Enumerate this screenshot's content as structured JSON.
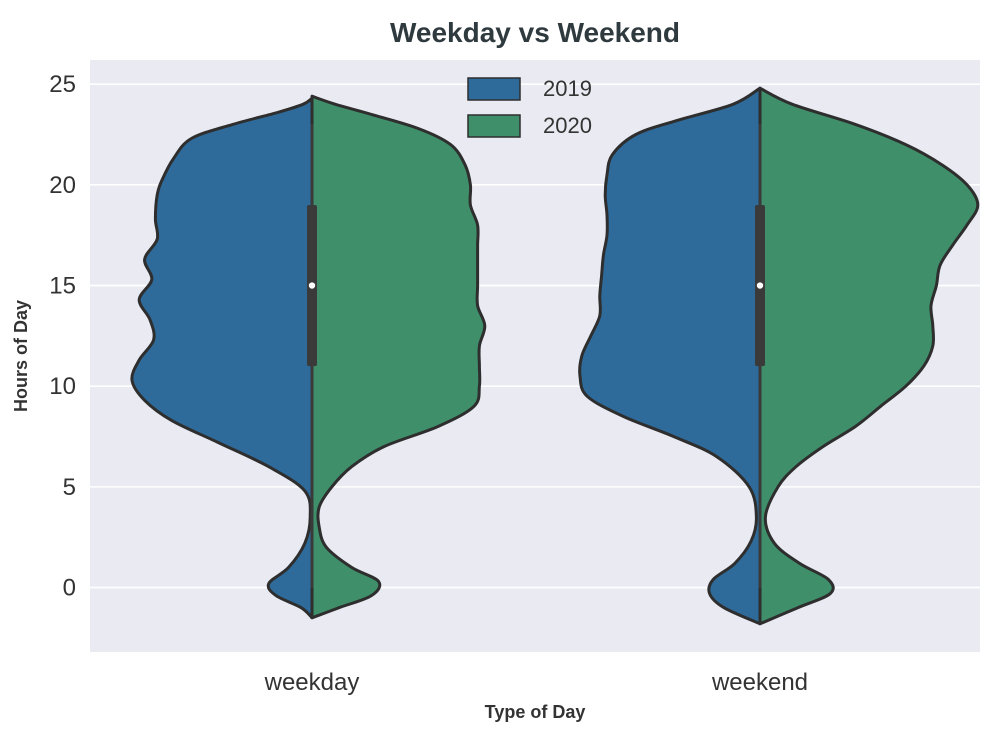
{
  "chart_data": {
    "type": "violin",
    "title": "Weekday vs Weekend",
    "xlabel": "Type of Day",
    "ylabel": "Hours of Day",
    "ylim": [
      -3.2,
      26.2
    ],
    "yticks": [
      0,
      5,
      10,
      15,
      20,
      25
    ],
    "categories": [
      "weekday",
      "weekend"
    ],
    "split": true,
    "grid": true,
    "legend_position": "top-center",
    "series": [
      {
        "name": "2019",
        "color": "#2f6b9a"
      },
      {
        "name": "2020",
        "color": "#3f8f6b"
      }
    ],
    "violins": [
      {
        "category": "weekday",
        "left": {
          "series": "2019",
          "profile": [
            [
              -1.5,
              0.0
            ],
            [
              -1.0,
              0.06
            ],
            [
              -0.4,
              0.2
            ],
            [
              0.2,
              0.24
            ],
            [
              1.0,
              0.13
            ],
            [
              2.2,
              0.04
            ],
            [
              3.5,
              0.01
            ],
            [
              4.8,
              0.04
            ],
            [
              6.0,
              0.24
            ],
            [
              7.2,
              0.52
            ],
            [
              8.3,
              0.78
            ],
            [
              9.3,
              0.93
            ],
            [
              10.3,
              1.0
            ],
            [
              11.3,
              0.96
            ],
            [
              12.3,
              0.88
            ],
            [
              13.3,
              0.9
            ],
            [
              14.3,
              0.96
            ],
            [
              15.3,
              0.89
            ],
            [
              16.3,
              0.93
            ],
            [
              17.3,
              0.86
            ],
            [
              18.3,
              0.87
            ],
            [
              19.5,
              0.86
            ],
            [
              20.3,
              0.83
            ],
            [
              21.3,
              0.77
            ],
            [
              22.3,
              0.67
            ],
            [
              23.0,
              0.44
            ],
            [
              23.6,
              0.19
            ],
            [
              24.0,
              0.05
            ],
            [
              24.3,
              0.0
            ]
          ]
        },
        "right": {
          "series": "2020",
          "profile": [
            [
              -1.5,
              0.0
            ],
            [
              -1.0,
              0.15
            ],
            [
              -0.4,
              0.33
            ],
            [
              0.3,
              0.37
            ],
            [
              1.0,
              0.22
            ],
            [
              2.0,
              0.08
            ],
            [
              3.0,
              0.04
            ],
            [
              4.0,
              0.04
            ],
            [
              5.0,
              0.11
            ],
            [
              6.0,
              0.22
            ],
            [
              7.0,
              0.4
            ],
            [
              8.0,
              0.7
            ],
            [
              9.0,
              0.9
            ],
            [
              10.0,
              0.93
            ],
            [
              11.0,
              0.93
            ],
            [
              12.0,
              0.93
            ],
            [
              13.0,
              0.96
            ],
            [
              14.0,
              0.92
            ],
            [
              15.0,
              0.92
            ],
            [
              16.0,
              0.92
            ],
            [
              17.0,
              0.92
            ],
            [
              18.0,
              0.92
            ],
            [
              19.0,
              0.88
            ],
            [
              20.0,
              0.88
            ],
            [
              21.0,
              0.85
            ],
            [
              22.0,
              0.77
            ],
            [
              22.8,
              0.59
            ],
            [
              23.5,
              0.33
            ],
            [
              24.0,
              0.13
            ],
            [
              24.4,
              0.0
            ]
          ]
        }
      },
      {
        "category": "weekend",
        "left": {
          "series": "2019",
          "profile": [
            [
              -1.8,
              0.0
            ],
            [
              -1.0,
              0.2
            ],
            [
              -0.3,
              0.28
            ],
            [
              0.4,
              0.26
            ],
            [
              1.2,
              0.14
            ],
            [
              2.3,
              0.05
            ],
            [
              3.5,
              0.02
            ],
            [
              5.0,
              0.06
            ],
            [
              6.5,
              0.24
            ],
            [
              7.5,
              0.48
            ],
            [
              8.5,
              0.76
            ],
            [
              9.5,
              0.96
            ],
            [
              10.5,
              1.0
            ],
            [
              11.5,
              0.99
            ],
            [
              12.5,
              0.94
            ],
            [
              13.5,
              0.89
            ],
            [
              14.5,
              0.89
            ],
            [
              15.5,
              0.88
            ],
            [
              16.5,
              0.87
            ],
            [
              17.5,
              0.85
            ],
            [
              18.5,
              0.85
            ],
            [
              19.5,
              0.86
            ],
            [
              20.5,
              0.85
            ],
            [
              21.5,
              0.82
            ],
            [
              22.5,
              0.69
            ],
            [
              23.2,
              0.46
            ],
            [
              24.0,
              0.15
            ],
            [
              24.8,
              0.0
            ]
          ]
        },
        "right": {
          "series": "2020",
          "profile": [
            [
              -1.8,
              0.0
            ],
            [
              -1.0,
              0.21
            ],
            [
              -0.3,
              0.39
            ],
            [
              0.4,
              0.38
            ],
            [
              1.2,
              0.22
            ],
            [
              2.2,
              0.08
            ],
            [
              3.5,
              0.03
            ],
            [
              5.0,
              0.1
            ],
            [
              6.0,
              0.2
            ],
            [
              7.0,
              0.35
            ],
            [
              8.0,
              0.53
            ],
            [
              9.0,
              0.67
            ],
            [
              10.0,
              0.81
            ],
            [
              11.0,
              0.91
            ],
            [
              12.0,
              0.96
            ],
            [
              13.0,
              0.96
            ],
            [
              14.0,
              0.95
            ],
            [
              15.0,
              0.98
            ],
            [
              16.0,
              1.0
            ],
            [
              17.0,
              1.07
            ],
            [
              18.0,
              1.15
            ],
            [
              19.0,
              1.21
            ],
            [
              20.0,
              1.15
            ],
            [
              21.0,
              1.01
            ],
            [
              22.0,
              0.81
            ],
            [
              23.0,
              0.53
            ],
            [
              24.0,
              0.18
            ],
            [
              24.8,
              0.0
            ]
          ]
        }
      }
    ],
    "inner_box": {
      "q1": 11,
      "median": 15,
      "q3": 19,
      "whisker_low": 0,
      "whisker_high": 23
    }
  }
}
